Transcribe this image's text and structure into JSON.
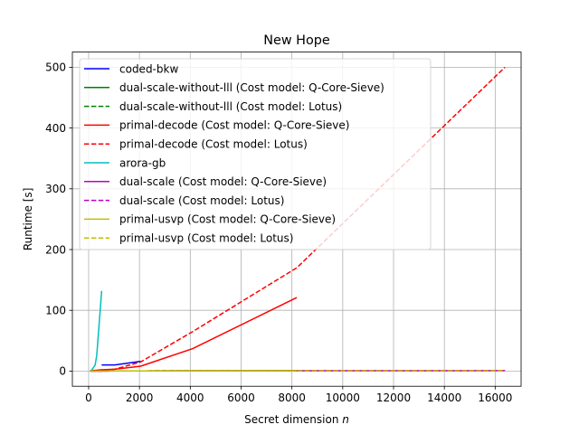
{
  "chart_data": {
    "type": "line",
    "title": "New Hope",
    "xlabel_text": "Secret dimension ",
    "xlabel_var": "n",
    "ylabel": "Runtime [s]",
    "xlim": [
      -640,
      17020
    ],
    "ylim": [
      -25,
      525
    ],
    "xticks": [
      0,
      2000,
      4000,
      6000,
      8000,
      10000,
      12000,
      14000,
      16000
    ],
    "yticks": [
      0,
      100,
      200,
      300,
      400,
      500
    ],
    "grid": true,
    "legend_position": "upper-left",
    "series": [
      {
        "name": "coded-bkw",
        "color": "#0000ff",
        "dash": "solid",
        "x": [
          512,
          1024,
          2048
        ],
        "y": [
          10,
          10,
          16
        ]
      },
      {
        "name": "dual-scale-without-lll (Cost model: Q-Core-Sieve)",
        "color": "#008000",
        "dash": "solid",
        "x": [
          64,
          128,
          256,
          512,
          1024,
          2048,
          4096,
          8192
        ],
        "y": [
          0.1,
          0.1,
          0.1,
          0.1,
          0.2,
          0.3,
          0.4,
          0.5
        ]
      },
      {
        "name": "dual-scale-without-lll (Cost model: Lotus)",
        "color": "#008000",
        "dash": "dashed",
        "x": [
          64,
          128,
          256,
          512,
          1024,
          2048,
          4096,
          8192
        ],
        "y": [
          0.1,
          0.1,
          0.1,
          0.1,
          0.2,
          0.3,
          0.4,
          0.5
        ]
      },
      {
        "name": "primal-decode (Cost model: Q-Core-Sieve)",
        "color": "#ff0000",
        "dash": "solid",
        "x": [
          64,
          128,
          256,
          512,
          1024,
          2048,
          4096,
          8192
        ],
        "y": [
          0.5,
          0.8,
          1.2,
          2,
          3,
          8,
          37,
          121
        ]
      },
      {
        "name": "primal-decode (Cost model: Lotus)",
        "color": "#ff0000",
        "dash": "dashed",
        "x": [
          64,
          128,
          256,
          512,
          1024,
          2048,
          4096,
          8192,
          16384
        ],
        "y": [
          0.5,
          0.8,
          1.2,
          2,
          3,
          15,
          65,
          170,
          500
        ]
      },
      {
        "name": "arora-gb",
        "color": "#00bfbf",
        "dash": "solid",
        "x": [
          64,
          128,
          256,
          320,
          512
        ],
        "y": [
          0.5,
          2,
          10,
          26,
          132
        ]
      },
      {
        "name": "dual-scale (Cost model: Q-Core-Sieve)",
        "color": "#bf00bf",
        "dash": "solid",
        "x": [
          64,
          128,
          256,
          512,
          1024,
          2048,
          4096,
          8192,
          16384
        ],
        "y": [
          0.1,
          0.1,
          0.1,
          0.1,
          0.2,
          0.3,
          0.4,
          0.5,
          0.7
        ]
      },
      {
        "name": "dual-scale (Cost model: Lotus)",
        "color": "#bf00bf",
        "dash": "dashed",
        "x": [
          64,
          128,
          256,
          512,
          1024,
          2048,
          4096,
          8192,
          16384
        ],
        "y": [
          0.1,
          0.1,
          0.1,
          0.1,
          0.2,
          0.3,
          0.4,
          0.5,
          0.7
        ]
      },
      {
        "name": "primal-usvp (Cost model: Q-Core-Sieve)",
        "color": "#bfbf00",
        "dash": "solid",
        "x": [
          64,
          128,
          256,
          512,
          1024,
          2048,
          4096,
          8192
        ],
        "y": [
          0.1,
          0.1,
          0.1,
          0.1,
          0.2,
          0.3,
          0.4,
          0.5
        ]
      },
      {
        "name": "primal-usvp (Cost model: Lotus)",
        "color": "#bfbf00",
        "dash": "dashed",
        "x": [
          64,
          128,
          256,
          512,
          1024,
          2048,
          4096,
          8192,
          16384
        ],
        "y": [
          0.1,
          0.1,
          0.1,
          0.1,
          0.2,
          0.3,
          0.4,
          0.5,
          0.7
        ]
      }
    ]
  }
}
